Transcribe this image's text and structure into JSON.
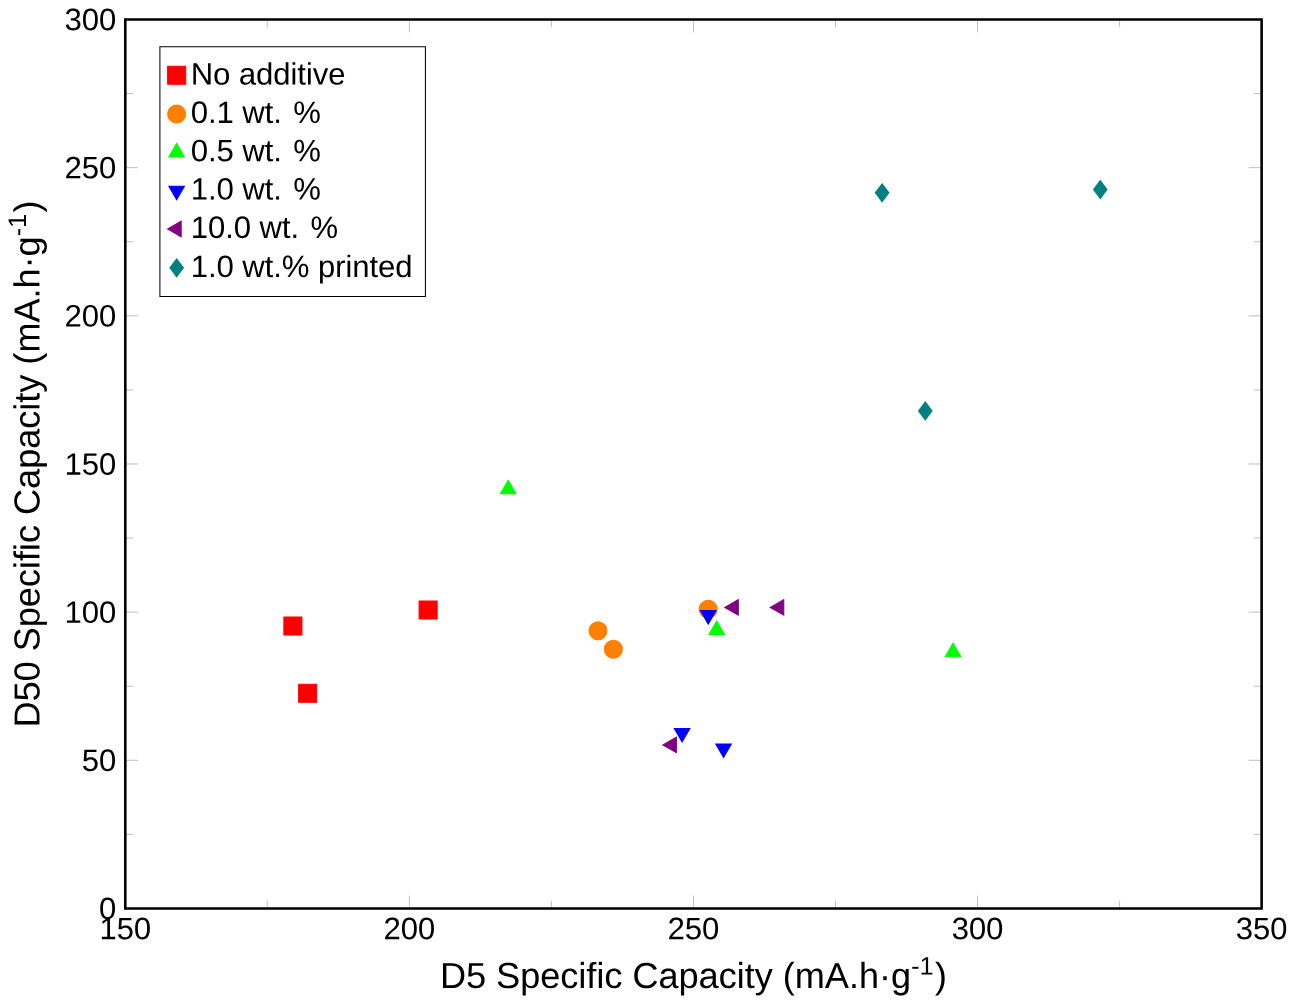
{
  "chart_data": {
    "type": "scatter",
    "xlabel": "D5 Specific Capacity (mA.h·g$^{-1}$)",
    "ylabel": "D50 Specific Capacity (mA.h·g$^{-1}$)",
    "xlim": [
      150,
      350
    ],
    "xticks": [
      150,
      200,
      250,
      300,
      350
    ],
    "ylim": [
      0,
      300
    ],
    "yticks": [
      0,
      50,
      100,
      150,
      200,
      250,
      300
    ],
    "legend": "top left",
    "grid": false,
    "series": [
      {
        "name": "No additive",
        "color": "#ff0000",
        "marker": "square",
        "x": [
          179.5,
          182.1,
          203.3
        ],
        "values": [
          95.3,
          72.6,
          100.7
        ]
      },
      {
        "name": "0.1 wt. %",
        "color": "#ff8000",
        "marker": "circle",
        "x": [
          233.2,
          235.9,
          252.6
        ],
        "values": [
          93.7,
          87.5,
          101
        ]
      },
      {
        "name": "0.5 wt. %",
        "color": "#00ff00",
        "marker": "triangle",
        "x": [
          217.4,
          254.1,
          295.7
        ],
        "values": [
          141.5,
          94,
          86.5
        ]
      },
      {
        "name": "1.0 wt. %",
        "color": "#0000ff",
        "marker": "triangle down",
        "x": [
          252.6,
          248,
          255.3
        ],
        "values": [
          99,
          59.2,
          54
        ]
      },
      {
        "name": "10.0 wt. %",
        "color": "#800080",
        "marker": "triangle left",
        "x": [
          257.1,
          265.1,
          246.2
        ],
        "values": [
          101.6,
          101.6,
          55.2
        ]
      },
      {
        "name": "1.0 wt.% printed",
        "color": "#008080",
        "marker": "diamond",
        "x": [
          283.2,
          321.6,
          290.8
        ],
        "values": [
          241.5,
          242.6,
          167.9
        ]
      }
    ]
  }
}
